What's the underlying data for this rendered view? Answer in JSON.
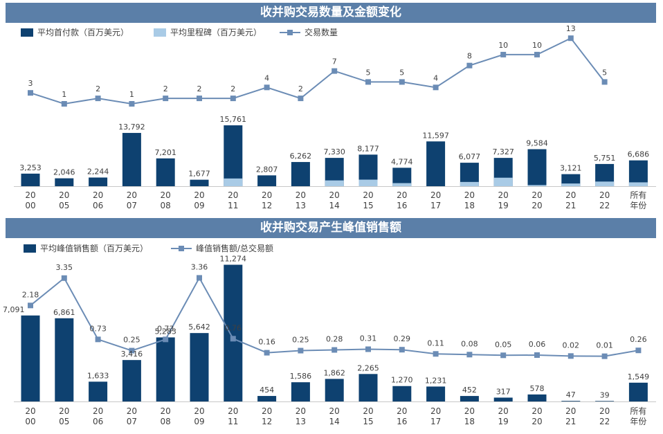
{
  "chart_data": [
    {
      "type": "bar",
      "title": "收并购交易数量及金额变化",
      "categories": [
        "2000",
        "2005",
        "2006",
        "2007",
        "2008",
        "2009",
        "2011",
        "2012",
        "2013",
        "2014",
        "2015",
        "2016",
        "2017",
        "2018",
        "2019",
        "2020",
        "2021",
        "2022",
        "所有年份"
      ],
      "series": [
        {
          "name": "平均首付款（百万美元）",
          "kind": "bar",
          "color": "#0e4170",
          "values": [
            3253,
            2046,
            2244,
            13792,
            7201,
            1677,
            15761,
            2807,
            6262,
            7330,
            8177,
            4774,
            11597,
            6077,
            7327,
            9584,
            3121,
            5751,
            6686
          ]
        },
        {
          "name": "平均里程碑（百万美元）",
          "kind": "bar-stack",
          "color": "#a9cbe6",
          "values": [
            0,
            0,
            0,
            0,
            0,
            0,
            2000,
            0,
            0,
            1500,
            1700,
            800,
            0,
            1100,
            2200,
            300,
            700,
            1200,
            1000
          ]
        },
        {
          "name": "交易数量",
          "kind": "line",
          "color": "#6b8cb5",
          "values": [
            3,
            1,
            2,
            1,
            2,
            2,
            2,
            4,
            2,
            7,
            5,
            5,
            4,
            8,
            10,
            10,
            13,
            5,
            null
          ]
        }
      ],
      "bar_labels": [
        "3,253",
        "2,046",
        "2,244",
        "13,792",
        "7,201",
        "1,677",
        "15,761",
        "2,807",
        "6,262",
        "7,330",
        "8,177",
        "4,774",
        "11,597",
        "6,077",
        "7,327",
        "9,584",
        "3,121",
        "5,751",
        "6,686"
      ]
    },
    {
      "type": "bar",
      "title": "收并购交易产生峰值销售额",
      "categories": [
        "2000",
        "2005",
        "2006",
        "2007",
        "2008",
        "2009",
        "2011",
        "2012",
        "2013",
        "2014",
        "2015",
        "2016",
        "2017",
        "2018",
        "2019",
        "2020",
        "2021",
        "2022",
        "所有年份"
      ],
      "series": [
        {
          "name": "平均峰值销售额（百万美元）",
          "kind": "bar",
          "color": "#0e4170",
          "values": [
            7091,
            6861,
            1633,
            3416,
            5283,
            5642,
            11274,
            454,
            1586,
            1862,
            2265,
            1270,
            1231,
            452,
            317,
            578,
            47,
            39,
            1549
          ]
        },
        {
          "name": "峰值销售额/总交易额",
          "kind": "line",
          "color": "#6b8cb5",
          "values": [
            2.18,
            3.35,
            0.73,
            0.25,
            0.73,
            3.36,
            0.76,
            0.16,
            0.25,
            0.28,
            0.31,
            0.29,
            0.11,
            0.08,
            0.05,
            0.06,
            0.02,
            0.01,
            0.26
          ]
        }
      ],
      "bar_labels": [
        "7,091",
        "6,861",
        "1,633",
        "3,416",
        "5,283",
        "5,642",
        "11,274",
        "454",
        "1,586",
        "1,862",
        "2,265",
        "1,270",
        "1,231",
        "452",
        "317",
        "578",
        "47",
        "39",
        "1,549"
      ],
      "line_labels": [
        "2.18",
        "3.35",
        "0.73",
        "0.25",
        "0.73",
        "3.36",
        "0.76",
        "0.16",
        "0.25",
        "0.28",
        "0.31",
        "0.29",
        "0.11",
        "0.08",
        "0.05",
        "0.06",
        "0.02",
        "0.01",
        "0.26"
      ]
    }
  ]
}
